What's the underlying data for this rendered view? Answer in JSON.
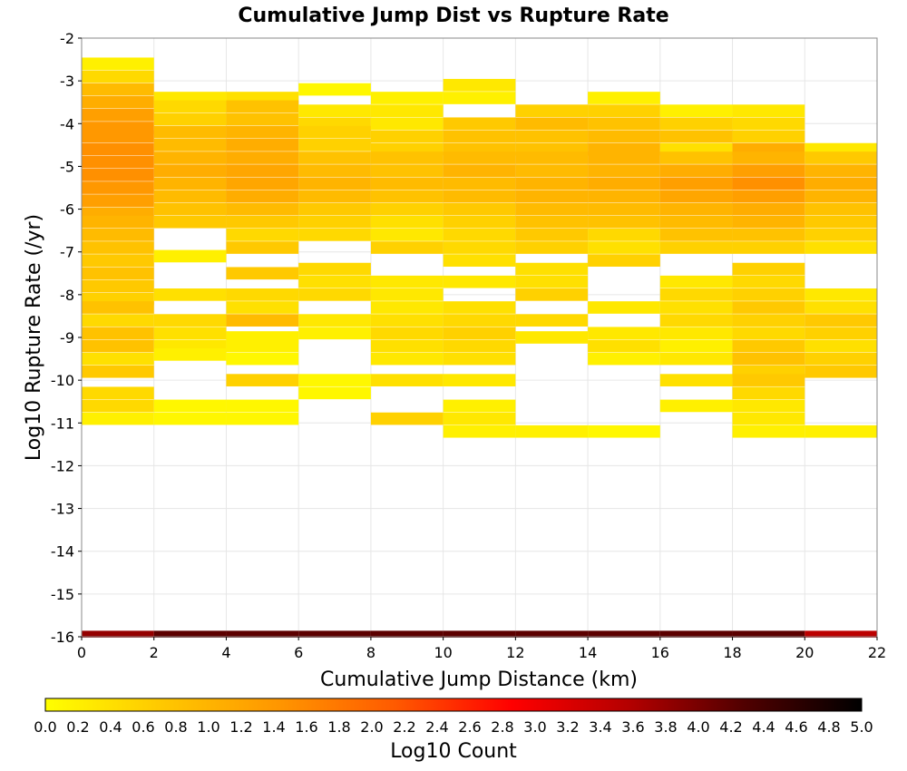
{
  "chart_data": {
    "type": "heatmap",
    "title": "Cumulative Jump Dist vs Rupture Rate",
    "xlabel": "Cumulative Jump Distance (km)",
    "ylabel": "Log10 Rupture Rate (/yr)",
    "xlim": [
      0,
      22
    ],
    "ylim": [
      -16,
      -2
    ],
    "x_ticks": [
      "0",
      "2",
      "4",
      "6",
      "8",
      "10",
      "12",
      "14",
      "16",
      "18",
      "20",
      "22"
    ],
    "y_ticks": [
      "-2",
      "-3",
      "-4",
      "-5",
      "-6",
      "-7",
      "-8",
      "-9",
      "-10",
      "-11",
      "-12",
      "-13",
      "-14",
      "-15",
      "-16"
    ],
    "grid": true,
    "x_bin_width": 2,
    "y_bin_height": 0.29,
    "x_bin_starts": [
      0,
      2,
      4,
      6,
      8,
      10,
      12,
      14,
      16,
      18,
      20
    ],
    "colorbar": {
      "label": "Log10 Count",
      "range": [
        0,
        5
      ],
      "ticks": [
        "0.0",
        "0.2",
        "0.4",
        "0.6",
        "0.8",
        "1.0",
        "1.2",
        "1.4",
        "1.6",
        "1.8",
        "2.0",
        "2.2",
        "2.4",
        "2.6",
        "2.8",
        "3.0",
        "3.2",
        "3.4",
        "3.6",
        "3.8",
        "4.0",
        "4.2",
        "4.4",
        "4.6",
        "4.8",
        "5.0"
      ],
      "colors": [
        "#ffff00",
        "#ffc800",
        "#ff9600",
        "#ff5a00",
        "#ff0000",
        "#b40000",
        "#500000",
        "#000000"
      ]
    },
    "columns": [
      {
        "x": 0,
        "cells": [
          [
            -2.6,
            0.2
          ],
          [
            -2.9,
            0.5
          ],
          [
            -3.2,
            0.9
          ],
          [
            -3.5,
            1.1
          ],
          [
            -3.8,
            1.3
          ],
          [
            -4.1,
            1.4
          ],
          [
            -4.3,
            1.4
          ],
          [
            -4.6,
            1.5
          ],
          [
            -4.9,
            1.5
          ],
          [
            -5.2,
            1.5
          ],
          [
            -5.5,
            1.4
          ],
          [
            -5.8,
            1.3
          ],
          [
            -6.1,
            1.1
          ],
          [
            -6.3,
            1.0
          ],
          [
            -6.6,
            0.9
          ],
          [
            -6.9,
            0.8
          ],
          [
            -7.2,
            0.7
          ],
          [
            -7.5,
            0.8
          ],
          [
            -7.8,
            0.7
          ],
          [
            -8.1,
            0.6
          ],
          [
            -8.3,
            0.8
          ],
          [
            -8.6,
            0.5
          ],
          [
            -8.9,
            0.8
          ],
          [
            -9.2,
            0.8
          ],
          [
            -9.5,
            0.4
          ],
          [
            -9.8,
            0.7
          ],
          [
            -10.3,
            0.5
          ],
          [
            -10.6,
            0.5
          ],
          [
            -10.9,
            0.2
          ]
        ]
      },
      {
        "x": 2,
        "cells": [
          [
            -3.4,
            0.3
          ],
          [
            -3.6,
            0.5
          ],
          [
            -3.9,
            0.6
          ],
          [
            -4.2,
            0.9
          ],
          [
            -4.5,
            0.9
          ],
          [
            -4.8,
            1.0
          ],
          [
            -5.1,
            1.1
          ],
          [
            -5.4,
            1.0
          ],
          [
            -5.7,
            0.9
          ],
          [
            -6.0,
            0.8
          ],
          [
            -6.3,
            0.7
          ],
          [
            -7.1,
            0.2
          ],
          [
            -8.0,
            0.4
          ],
          [
            -8.6,
            0.5
          ],
          [
            -8.9,
            0.4
          ],
          [
            -9.2,
            0.3
          ],
          [
            -9.4,
            0.2
          ],
          [
            -10.6,
            0.1
          ],
          [
            -10.9,
            0.1
          ]
        ]
      },
      {
        "x": 4,
        "cells": [
          [
            -3.4,
            0.4
          ],
          [
            -3.6,
            0.8
          ],
          [
            -3.9,
            0.8
          ],
          [
            -4.2,
            1.0
          ],
          [
            -4.5,
            1.1
          ],
          [
            -4.8,
            1.1
          ],
          [
            -5.1,
            1.2
          ],
          [
            -5.4,
            1.2
          ],
          [
            -5.7,
            1.1
          ],
          [
            -6.0,
            0.9
          ],
          [
            -6.3,
            0.7
          ],
          [
            -6.6,
            0.5
          ],
          [
            -6.9,
            0.7
          ],
          [
            -7.5,
            0.7
          ],
          [
            -8.0,
            0.5
          ],
          [
            -8.3,
            0.4
          ],
          [
            -8.6,
            0.9
          ],
          [
            -9.0,
            0.2
          ],
          [
            -9.2,
            0.2
          ],
          [
            -9.5,
            0.1
          ],
          [
            -10.0,
            0.6
          ],
          [
            -10.6,
            0.1
          ],
          [
            -10.9,
            0.1
          ]
        ]
      },
      {
        "x": 6,
        "cells": [
          [
            -3.2,
            0.1
          ],
          [
            -3.7,
            0.3
          ],
          [
            -4.0,
            0.5
          ],
          [
            -4.2,
            0.6
          ],
          [
            -4.5,
            0.6
          ],
          [
            -4.8,
            0.8
          ],
          [
            -5.1,
            0.9
          ],
          [
            -5.4,
            1.0
          ],
          [
            -5.7,
            0.9
          ],
          [
            -6.0,
            0.7
          ],
          [
            -6.3,
            0.6
          ],
          [
            -6.6,
            0.5
          ],
          [
            -7.4,
            0.5
          ],
          [
            -7.7,
            0.4
          ],
          [
            -8.0,
            0.5
          ],
          [
            -8.6,
            0.3
          ],
          [
            -8.9,
            0.2
          ],
          [
            -10.0,
            0.1
          ],
          [
            -10.3,
            0.1
          ]
        ]
      },
      {
        "x": 8,
        "cells": [
          [
            -3.4,
            0.2
          ],
          [
            -3.7,
            0.3
          ],
          [
            -4.0,
            0.3
          ],
          [
            -4.3,
            0.6
          ],
          [
            -4.6,
            0.6
          ],
          [
            -4.8,
            0.8
          ],
          [
            -5.1,
            0.8
          ],
          [
            -5.4,
            0.9
          ],
          [
            -5.7,
            0.8
          ],
          [
            -6.0,
            0.6
          ],
          [
            -6.3,
            0.4
          ],
          [
            -6.6,
            0.3
          ],
          [
            -6.9,
            0.6
          ],
          [
            -7.7,
            0.3
          ],
          [
            -8.0,
            0.3
          ],
          [
            -8.3,
            0.3
          ],
          [
            -8.6,
            0.4
          ],
          [
            -8.9,
            0.5
          ],
          [
            -9.2,
            0.4
          ],
          [
            -9.5,
            0.3
          ],
          [
            -10.0,
            0.4
          ],
          [
            -10.9,
            0.6
          ]
        ]
      },
      {
        "x": 10,
        "cells": [
          [
            -3.1,
            0.3
          ],
          [
            -3.4,
            0.2
          ],
          [
            -4.0,
            0.7
          ],
          [
            -4.3,
            0.8
          ],
          [
            -4.6,
            0.8
          ],
          [
            -4.8,
            0.9
          ],
          [
            -5.1,
            1.0
          ],
          [
            -5.4,
            0.9
          ],
          [
            -5.7,
            0.9
          ],
          [
            -6.0,
            0.7
          ],
          [
            -6.3,
            0.6
          ],
          [
            -6.6,
            0.5
          ],
          [
            -6.9,
            0.5
          ],
          [
            -7.2,
            0.4
          ],
          [
            -7.7,
            0.3
          ],
          [
            -8.3,
            0.4
          ],
          [
            -8.6,
            0.5
          ],
          [
            -8.9,
            0.6
          ],
          [
            -9.2,
            0.5
          ],
          [
            -9.5,
            0.4
          ],
          [
            -10.0,
            0.3
          ],
          [
            -10.6,
            0.2
          ],
          [
            -10.9,
            0.3
          ],
          [
            -11.2,
            0.2
          ]
        ]
      },
      {
        "x": 12,
        "cells": [
          [
            -3.7,
            0.6
          ],
          [
            -4.0,
            0.9
          ],
          [
            -4.3,
            0.8
          ],
          [
            -4.6,
            0.8
          ],
          [
            -4.8,
            0.9
          ],
          [
            -5.1,
            0.9
          ],
          [
            -5.4,
            1.0
          ],
          [
            -5.7,
            1.0
          ],
          [
            -6.0,
            0.9
          ],
          [
            -6.3,
            0.8
          ],
          [
            -6.6,
            0.7
          ],
          [
            -6.9,
            0.6
          ],
          [
            -7.4,
            0.4
          ],
          [
            -7.7,
            0.4
          ],
          [
            -8.0,
            0.6
          ],
          [
            -8.6,
            0.5
          ],
          [
            -9.0,
            0.3
          ],
          [
            -11.2,
            0.2
          ]
        ]
      },
      {
        "x": 14,
        "cells": [
          [
            -3.4,
            0.2
          ],
          [
            -3.7,
            0.6
          ],
          [
            -4.0,
            0.8
          ],
          [
            -4.3,
            0.9
          ],
          [
            -4.6,
            1.0
          ],
          [
            -4.8,
            1.0
          ],
          [
            -5.1,
            1.0
          ],
          [
            -5.4,
            1.1
          ],
          [
            -5.7,
            1.0
          ],
          [
            -6.0,
            0.9
          ],
          [
            -6.3,
            0.8
          ],
          [
            -6.6,
            0.5
          ],
          [
            -6.9,
            0.4
          ],
          [
            -7.2,
            0.6
          ],
          [
            -8.3,
            0.3
          ],
          [
            -8.9,
            0.3
          ],
          [
            -9.2,
            0.4
          ],
          [
            -9.5,
            0.2
          ],
          [
            -11.2,
            0.1
          ]
        ]
      },
      {
        "x": 16,
        "cells": [
          [
            -3.7,
            0.2
          ],
          [
            -4.0,
            0.6
          ],
          [
            -4.3,
            0.8
          ],
          [
            -4.6,
            0.4
          ],
          [
            -4.8,
            0.8
          ],
          [
            -5.1,
            1.1
          ],
          [
            -5.4,
            1.3
          ],
          [
            -5.7,
            1.2
          ],
          [
            -6.0,
            1.0
          ],
          [
            -6.3,
            0.9
          ],
          [
            -6.6,
            0.8
          ],
          [
            -6.9,
            0.6
          ],
          [
            -7.7,
            0.3
          ],
          [
            -8.0,
            0.5
          ],
          [
            -8.3,
            0.4
          ],
          [
            -8.6,
            0.5
          ],
          [
            -8.9,
            0.3
          ],
          [
            -9.2,
            0.2
          ],
          [
            -9.5,
            0.3
          ],
          [
            -10.0,
            0.4
          ],
          [
            -10.6,
            0.2
          ]
        ]
      },
      {
        "x": 18,
        "cells": [
          [
            -3.7,
            0.3
          ],
          [
            -4.0,
            0.5
          ],
          [
            -4.3,
            0.6
          ],
          [
            -4.6,
            1.1
          ],
          [
            -4.8,
            1.0
          ],
          [
            -5.1,
            1.3
          ],
          [
            -5.4,
            1.5
          ],
          [
            -5.7,
            1.3
          ],
          [
            -6.0,
            1.1
          ],
          [
            -6.3,
            1.0
          ],
          [
            -6.6,
            0.8
          ],
          [
            -6.9,
            0.6
          ],
          [
            -7.4,
            0.6
          ],
          [
            -7.7,
            0.5
          ],
          [
            -8.0,
            0.6
          ],
          [
            -8.3,
            0.7
          ],
          [
            -8.6,
            0.6
          ],
          [
            -8.9,
            0.5
          ],
          [
            -9.2,
            0.7
          ],
          [
            -9.5,
            0.8
          ],
          [
            -9.8,
            0.6
          ],
          [
            -10.0,
            0.7
          ],
          [
            -10.3,
            0.5
          ],
          [
            -10.6,
            0.3
          ],
          [
            -10.9,
            0.3
          ],
          [
            -11.2,
            0.2
          ]
        ]
      },
      {
        "x": 20,
        "cells": [
          [
            -4.6,
            0.3
          ],
          [
            -4.8,
            0.7
          ],
          [
            -5.1,
            1.0
          ],
          [
            -5.4,
            1.1
          ],
          [
            -5.7,
            1.0
          ],
          [
            -6.0,
            0.8
          ],
          [
            -6.3,
            0.7
          ],
          [
            -6.6,
            0.6
          ],
          [
            -6.9,
            0.4
          ],
          [
            -8.0,
            0.3
          ],
          [
            -8.3,
            0.4
          ],
          [
            -8.6,
            0.7
          ],
          [
            -8.9,
            0.6
          ],
          [
            -9.2,
            0.4
          ],
          [
            -9.5,
            0.6
          ],
          [
            -9.8,
            0.7
          ],
          [
            -11.2,
            0.2
          ]
        ]
      }
    ],
    "bottom_row": {
      "y": -16,
      "cells": [
        [
          0,
          3.8
        ],
        [
          2,
          4.2
        ],
        [
          4,
          4.2
        ],
        [
          6,
          4.2
        ],
        [
          8,
          4.2
        ],
        [
          10,
          4.2
        ],
        [
          12,
          4.2
        ],
        [
          14,
          4.2
        ],
        [
          16,
          4.2
        ],
        [
          18,
          4.2
        ],
        [
          20,
          3.5
        ]
      ]
    }
  }
}
